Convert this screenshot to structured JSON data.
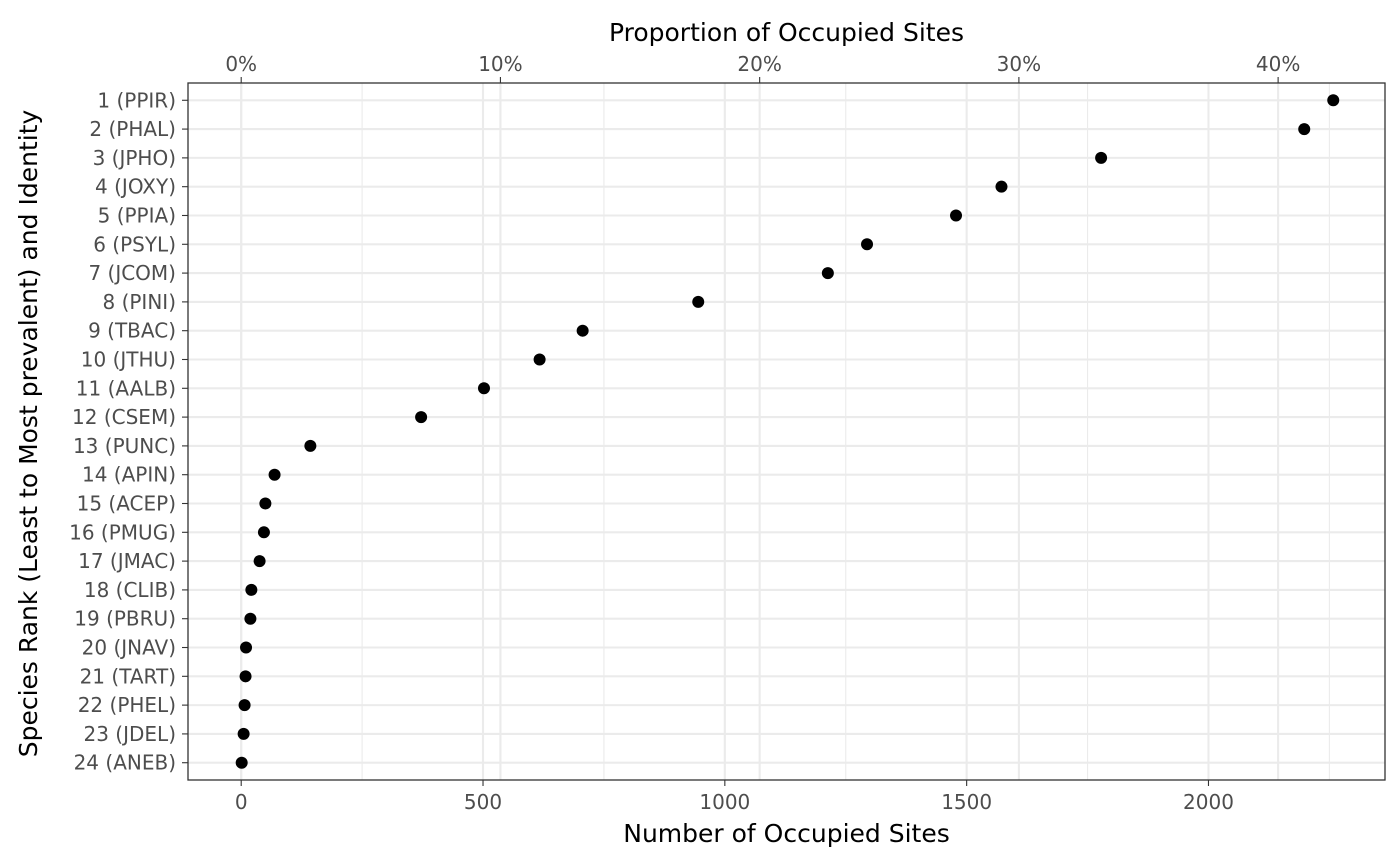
{
  "chart_data": {
    "type": "scatter",
    "xlabel": "Number of Occupied Sites",
    "x2label": "Proportion of Occupied Sites",
    "ylabel": "Species Rank (Least to Most prevalent) and Identity",
    "xlim": [
      -110,
      2365
    ],
    "x_ticks": [
      0,
      500,
      1000,
      1500,
      2000
    ],
    "x_tick_labels": [
      "0",
      "500",
      "1000",
      "1500",
      "2000"
    ],
    "x2_total_sites": 5360,
    "x2_ticks": [
      0,
      0.1,
      0.2,
      0.3,
      0.4
    ],
    "x2_tick_labels": [
      "0%",
      "10%",
      "20%",
      "30%",
      "40%"
    ],
    "grid": true,
    "categories": [
      "1 (PPIR)",
      "2 (PHAL)",
      "3 (JPHO)",
      "4 (JOXY)",
      "5 (PPIA)",
      "6 (PSYL)",
      "7 (JCOM)",
      "8 (PINI)",
      "9 (TBAC)",
      "10 (JTHU)",
      "11 (AALB)",
      "12 (CSEM)",
      "13 (PUNC)",
      "14 (APIN)",
      "15 (ACEP)",
      "16 (PMUG)",
      "17 (JMAC)",
      "18 (CLIB)",
      "19 (PBRU)",
      "20 (JNAV)",
      "21 (TART)",
      "22 (PHEL)",
      "23 (JDEL)",
      "24 (ANEB)"
    ],
    "values": [
      2258,
      2198,
      1778,
      1572,
      1478,
      1294,
      1213,
      945,
      706,
      617,
      502,
      372,
      143,
      69,
      50,
      47,
      38,
      21,
      19,
      10,
      9,
      7,
      5,
      1
    ],
    "point_color": "#000000"
  }
}
